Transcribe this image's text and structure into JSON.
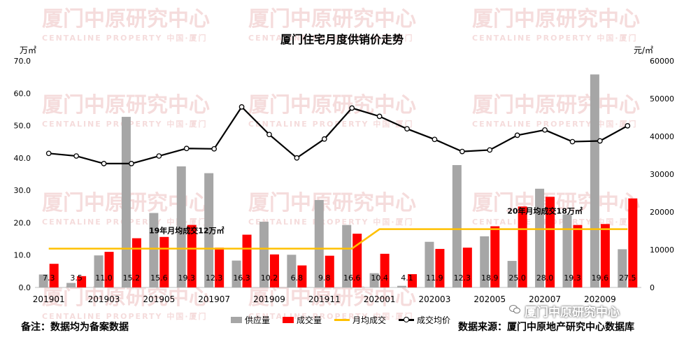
{
  "watermark": {
    "text": "厦门中原研究中心",
    "sub": "CENTALINE PROPERTY   中国·厦门"
  },
  "wechat_mark": "厦门中原研究中心",
  "footnote_left": "备注：数据均为备案数据",
  "footnote_right": "数据来源：厦门中原地产研究中心数据库",
  "chart_data": {
    "type": "bar",
    "title": "厦门住宅月度供销价走势",
    "y_left_unit": "万㎡",
    "y_right_unit": "元/㎡",
    "ylim_left": [
      0,
      70
    ],
    "ylim_right": [
      0,
      60000
    ],
    "y_left_ticks": [
      "0.0",
      "10.0",
      "20.0",
      "30.0",
      "40.0",
      "50.0",
      "60.0",
      "70.0"
    ],
    "y_right_ticks": [
      "0",
      "10000",
      "20000",
      "30000",
      "40000",
      "50000",
      "60000"
    ],
    "x_tick_labels": [
      "201901",
      "201903",
      "201905",
      "201907",
      "201909",
      "201911",
      "202001",
      "202003",
      "202005",
      "202007",
      "202009"
    ],
    "categories": [
      "201901",
      "201902",
      "201903",
      "201904",
      "201905",
      "201906",
      "201907",
      "201908",
      "201909",
      "201910",
      "201911",
      "201912",
      "202001",
      "202002",
      "202003",
      "202004",
      "202005",
      "202006",
      "202007",
      "202008",
      "202009",
      "202010"
    ],
    "series": [
      {
        "name": "供应量",
        "kind": "bar",
        "color": "#a6a6a6",
        "values": [
          4.0,
          1.4,
          9.9,
          52.7,
          23.0,
          37.4,
          35.3,
          8.3,
          20.3,
          10.1,
          27.0,
          19.3,
          4.4,
          0.5,
          14.1,
          37.8,
          15.8,
          8.2,
          30.5,
          22.6,
          65.8,
          11.8
        ]
      },
      {
        "name": "成交量",
        "kind": "bar",
        "color": "#ff0000",
        "values": [
          7.3,
          3.5,
          11.0,
          15.2,
          15.6,
          19.3,
          12.3,
          16.3,
          10.2,
          6.8,
          9.8,
          16.6,
          10.4,
          4.1,
          11.9,
          12.3,
          18.9,
          25.0,
          28.0,
          19.3,
          19.6,
          27.5
        ],
        "labels": [
          "7.3",
          "3.5",
          "11.0",
          "15.2",
          "15.6",
          "19.3",
          "12.3",
          "16.3",
          "10.2",
          "6.8",
          "9.8",
          "16.6",
          "10.4",
          "4.1",
          "11.9",
          "12.3",
          "18.9",
          "25.0",
          "28.0",
          "19.3",
          "19.6",
          "27.5"
        ]
      },
      {
        "name": "月均成交",
        "kind": "step-line",
        "axis": "left",
        "color": "#ffc000",
        "values": [
          12,
          12,
          12,
          12,
          12,
          12,
          12,
          12,
          12,
          12,
          12,
          12,
          18,
          18,
          18,
          18,
          18,
          18,
          18,
          18,
          18,
          18
        ]
      },
      {
        "name": "成交均价",
        "kind": "line",
        "axis": "right",
        "color": "#000000",
        "values": [
          35500,
          34800,
          32800,
          32800,
          34800,
          36800,
          36700,
          47800,
          40500,
          34300,
          39300,
          47500,
          45300,
          42000,
          39200,
          36000,
          36400,
          40300,
          41700,
          38600,
          38800,
          42800
        ]
      }
    ],
    "annotations": [
      {
        "text": "19年月均成交12万㎡",
        "series": "月均成交",
        "at": "201906"
      },
      {
        "text": "20年月均成交18万㎡",
        "series": "月均成交",
        "at": "202007"
      }
    ],
    "legend_position": "bottom",
    "grid": false
  }
}
